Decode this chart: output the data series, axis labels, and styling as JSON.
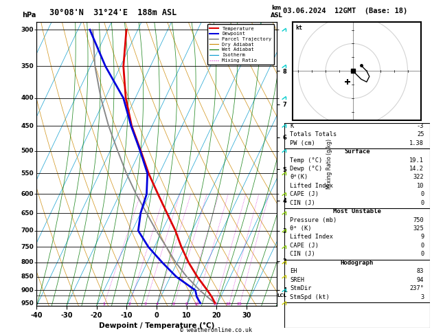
{
  "title_left": "30°08'N  31°24'E  188m ASL",
  "title_right": "03.06.2024  12GMT  (Base: 18)",
  "xlabel": "Dewpoint / Temperature (°C)",
  "ylabel_left": "hPa",
  "ylabel_right_km": "km\nASL",
  "ylabel_right2": "Mixing Ratio (g/kg)",
  "pressure_levels": [
    300,
    350,
    400,
    450,
    500,
    550,
    600,
    650,
    700,
    750,
    800,
    850,
    900,
    950
  ],
  "temp_ticks": [
    -40,
    -30,
    -20,
    -10,
    0,
    10,
    20,
    30
  ],
  "bg_color": "#ffffff",
  "plot_bg": "#ffffff",
  "temp_line_color": "#dd0000",
  "dewp_line_color": "#0000dd",
  "parcel_color": "#888888",
  "dry_adiabat_color": "#cc8800",
  "wet_adiabat_color": "#007700",
  "isotherm_color": "#0099cc",
  "mixing_ratio_color": "#cc00cc",
  "pressure_data": [
    950,
    925,
    900,
    850,
    800,
    750,
    700,
    650,
    600,
    550,
    500,
    450,
    400,
    350,
    300
  ],
  "temp_data": [
    19.1,
    17.0,
    14.5,
    9.0,
    3.8,
    -1.0,
    -5.6,
    -11.2,
    -17.2,
    -23.6,
    -29.8,
    -36.8,
    -43.2,
    -49.0,
    -53.8
  ],
  "dewp_data": [
    14.2,
    12.0,
    10.5,
    2.0,
    -5.0,
    -12.0,
    -18.0,
    -20.0,
    -21.0,
    -24.0,
    -30.0,
    -37.0,
    -44.0,
    -55.0,
    -66.0
  ],
  "parcel_data_p": [
    950,
    925,
    900,
    850,
    800,
    750,
    700,
    650,
    600,
    550,
    500,
    450,
    400,
    350,
    300
  ],
  "parcel_data_t": [
    19.1,
    15.5,
    12.0,
    5.5,
    -0.5,
    -6.0,
    -12.0,
    -18.0,
    -24.5,
    -31.0,
    -37.5,
    -44.5,
    -51.5,
    -58.5,
    -65.0
  ],
  "mixing_ratios": [
    1,
    2,
    3,
    4,
    6,
    8,
    10,
    15,
    20,
    25
  ],
  "km_ticks": [
    1,
    2,
    3,
    4,
    5,
    6,
    7,
    8
  ],
  "km_pressures": [
    898,
    795,
    700,
    616,
    540,
    472,
    411,
    357
  ],
  "lcl_pressure": 920,
  "pmin": 290,
  "pmax": 960,
  "tmin": -40,
  "tmax": 40,
  "skew_factor": 45,
  "stats_k": "-3",
  "stats_tt": "25",
  "stats_pw": "1.38",
  "surf_temp": "19.1",
  "surf_dewp": "14.2",
  "surf_thetae": "322",
  "surf_li": "10",
  "surf_cape": "0",
  "surf_cin": "0",
  "mu_pressure": "750",
  "mu_thetae": "325",
  "mu_li": "9",
  "mu_cape": "0",
  "mu_cin": "0",
  "hodo_eh": "83",
  "hodo_sreh": "94",
  "hodo_stmdir": "237°",
  "hodo_stmspd": "3",
  "copyright": "© weatheronline.co.uk",
  "hodo_u": [
    0,
    1,
    3,
    5,
    6,
    5,
    4,
    3
  ],
  "hodo_v": [
    0,
    -1,
    -3,
    -4,
    -2,
    0,
    1,
    2
  ],
  "storm_u": -2,
  "storm_v": -4
}
